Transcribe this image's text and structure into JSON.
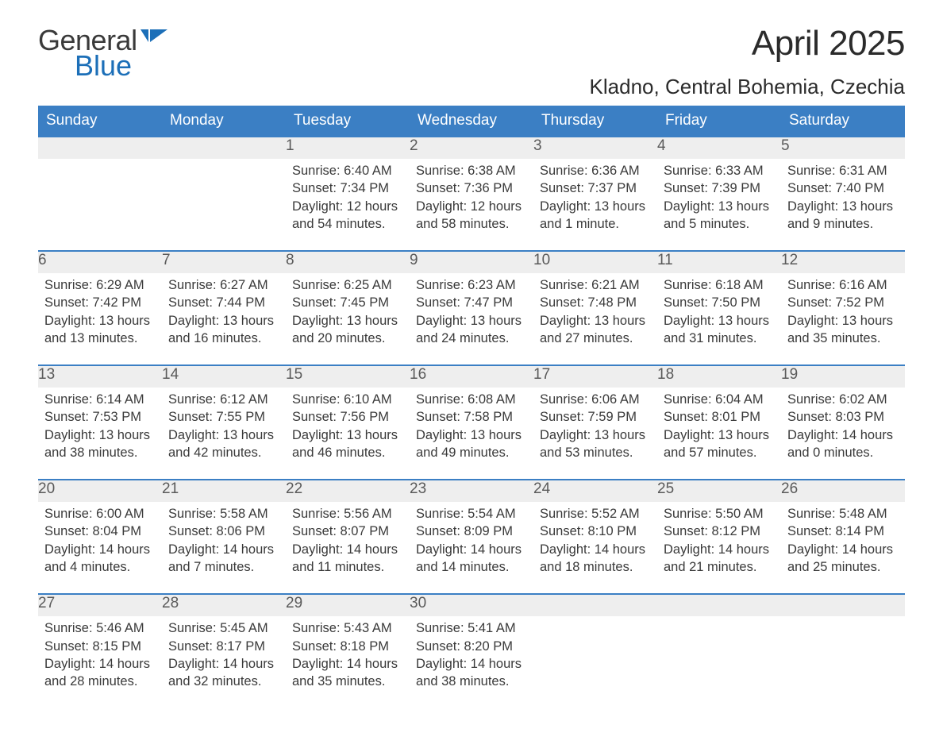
{
  "logo": {
    "word1": "General",
    "word2": "Blue",
    "flag_color": "#1c6fb8",
    "text_gray": "#3a3a3a"
  },
  "title": "April 2025",
  "location": "Kladno, Central Bohemia, Czechia",
  "colors": {
    "header_bg": "#3b7fc4",
    "header_text": "#ffffff",
    "daynum_bg": "#eeeeee",
    "row_border": "#3b7fc4",
    "body_text": "#3a3a3a",
    "background": "#ffffff"
  },
  "day_headers": [
    "Sunday",
    "Monday",
    "Tuesday",
    "Wednesday",
    "Thursday",
    "Friday",
    "Saturday"
  ],
  "weeks": [
    [
      null,
      null,
      {
        "n": "1",
        "sr": "Sunrise: 6:40 AM",
        "ss": "Sunset: 7:34 PM",
        "d1": "Daylight: 12 hours",
        "d2": "and 54 minutes."
      },
      {
        "n": "2",
        "sr": "Sunrise: 6:38 AM",
        "ss": "Sunset: 7:36 PM",
        "d1": "Daylight: 12 hours",
        "d2": "and 58 minutes."
      },
      {
        "n": "3",
        "sr": "Sunrise: 6:36 AM",
        "ss": "Sunset: 7:37 PM",
        "d1": "Daylight: 13 hours",
        "d2": "and 1 minute."
      },
      {
        "n": "4",
        "sr": "Sunrise: 6:33 AM",
        "ss": "Sunset: 7:39 PM",
        "d1": "Daylight: 13 hours",
        "d2": "and 5 minutes."
      },
      {
        "n": "5",
        "sr": "Sunrise: 6:31 AM",
        "ss": "Sunset: 7:40 PM",
        "d1": "Daylight: 13 hours",
        "d2": "and 9 minutes."
      }
    ],
    [
      {
        "n": "6",
        "sr": "Sunrise: 6:29 AM",
        "ss": "Sunset: 7:42 PM",
        "d1": "Daylight: 13 hours",
        "d2": "and 13 minutes."
      },
      {
        "n": "7",
        "sr": "Sunrise: 6:27 AM",
        "ss": "Sunset: 7:44 PM",
        "d1": "Daylight: 13 hours",
        "d2": "and 16 minutes."
      },
      {
        "n": "8",
        "sr": "Sunrise: 6:25 AM",
        "ss": "Sunset: 7:45 PM",
        "d1": "Daylight: 13 hours",
        "d2": "and 20 minutes."
      },
      {
        "n": "9",
        "sr": "Sunrise: 6:23 AM",
        "ss": "Sunset: 7:47 PM",
        "d1": "Daylight: 13 hours",
        "d2": "and 24 minutes."
      },
      {
        "n": "10",
        "sr": "Sunrise: 6:21 AM",
        "ss": "Sunset: 7:48 PM",
        "d1": "Daylight: 13 hours",
        "d2": "and 27 minutes."
      },
      {
        "n": "11",
        "sr": "Sunrise: 6:18 AM",
        "ss": "Sunset: 7:50 PM",
        "d1": "Daylight: 13 hours",
        "d2": "and 31 minutes."
      },
      {
        "n": "12",
        "sr": "Sunrise: 6:16 AM",
        "ss": "Sunset: 7:52 PM",
        "d1": "Daylight: 13 hours",
        "d2": "and 35 minutes."
      }
    ],
    [
      {
        "n": "13",
        "sr": "Sunrise: 6:14 AM",
        "ss": "Sunset: 7:53 PM",
        "d1": "Daylight: 13 hours",
        "d2": "and 38 minutes."
      },
      {
        "n": "14",
        "sr": "Sunrise: 6:12 AM",
        "ss": "Sunset: 7:55 PM",
        "d1": "Daylight: 13 hours",
        "d2": "and 42 minutes."
      },
      {
        "n": "15",
        "sr": "Sunrise: 6:10 AM",
        "ss": "Sunset: 7:56 PM",
        "d1": "Daylight: 13 hours",
        "d2": "and 46 minutes."
      },
      {
        "n": "16",
        "sr": "Sunrise: 6:08 AM",
        "ss": "Sunset: 7:58 PM",
        "d1": "Daylight: 13 hours",
        "d2": "and 49 minutes."
      },
      {
        "n": "17",
        "sr": "Sunrise: 6:06 AM",
        "ss": "Sunset: 7:59 PM",
        "d1": "Daylight: 13 hours",
        "d2": "and 53 minutes."
      },
      {
        "n": "18",
        "sr": "Sunrise: 6:04 AM",
        "ss": "Sunset: 8:01 PM",
        "d1": "Daylight: 13 hours",
        "d2": "and 57 minutes."
      },
      {
        "n": "19",
        "sr": "Sunrise: 6:02 AM",
        "ss": "Sunset: 8:03 PM",
        "d1": "Daylight: 14 hours",
        "d2": "and 0 minutes."
      }
    ],
    [
      {
        "n": "20",
        "sr": "Sunrise: 6:00 AM",
        "ss": "Sunset: 8:04 PM",
        "d1": "Daylight: 14 hours",
        "d2": "and 4 minutes."
      },
      {
        "n": "21",
        "sr": "Sunrise: 5:58 AM",
        "ss": "Sunset: 8:06 PM",
        "d1": "Daylight: 14 hours",
        "d2": "and 7 minutes."
      },
      {
        "n": "22",
        "sr": "Sunrise: 5:56 AM",
        "ss": "Sunset: 8:07 PM",
        "d1": "Daylight: 14 hours",
        "d2": "and 11 minutes."
      },
      {
        "n": "23",
        "sr": "Sunrise: 5:54 AM",
        "ss": "Sunset: 8:09 PM",
        "d1": "Daylight: 14 hours",
        "d2": "and 14 minutes."
      },
      {
        "n": "24",
        "sr": "Sunrise: 5:52 AM",
        "ss": "Sunset: 8:10 PM",
        "d1": "Daylight: 14 hours",
        "d2": "and 18 minutes."
      },
      {
        "n": "25",
        "sr": "Sunrise: 5:50 AM",
        "ss": "Sunset: 8:12 PM",
        "d1": "Daylight: 14 hours",
        "d2": "and 21 minutes."
      },
      {
        "n": "26",
        "sr": "Sunrise: 5:48 AM",
        "ss": "Sunset: 8:14 PM",
        "d1": "Daylight: 14 hours",
        "d2": "and 25 minutes."
      }
    ],
    [
      {
        "n": "27",
        "sr": "Sunrise: 5:46 AM",
        "ss": "Sunset: 8:15 PM",
        "d1": "Daylight: 14 hours",
        "d2": "and 28 minutes."
      },
      {
        "n": "28",
        "sr": "Sunrise: 5:45 AM",
        "ss": "Sunset: 8:17 PM",
        "d1": "Daylight: 14 hours",
        "d2": "and 32 minutes."
      },
      {
        "n": "29",
        "sr": "Sunrise: 5:43 AM",
        "ss": "Sunset: 8:18 PM",
        "d1": "Daylight: 14 hours",
        "d2": "and 35 minutes."
      },
      {
        "n": "30",
        "sr": "Sunrise: 5:41 AM",
        "ss": "Sunset: 8:20 PM",
        "d1": "Daylight: 14 hours",
        "d2": "and 38 minutes."
      },
      null,
      null,
      null
    ]
  ]
}
